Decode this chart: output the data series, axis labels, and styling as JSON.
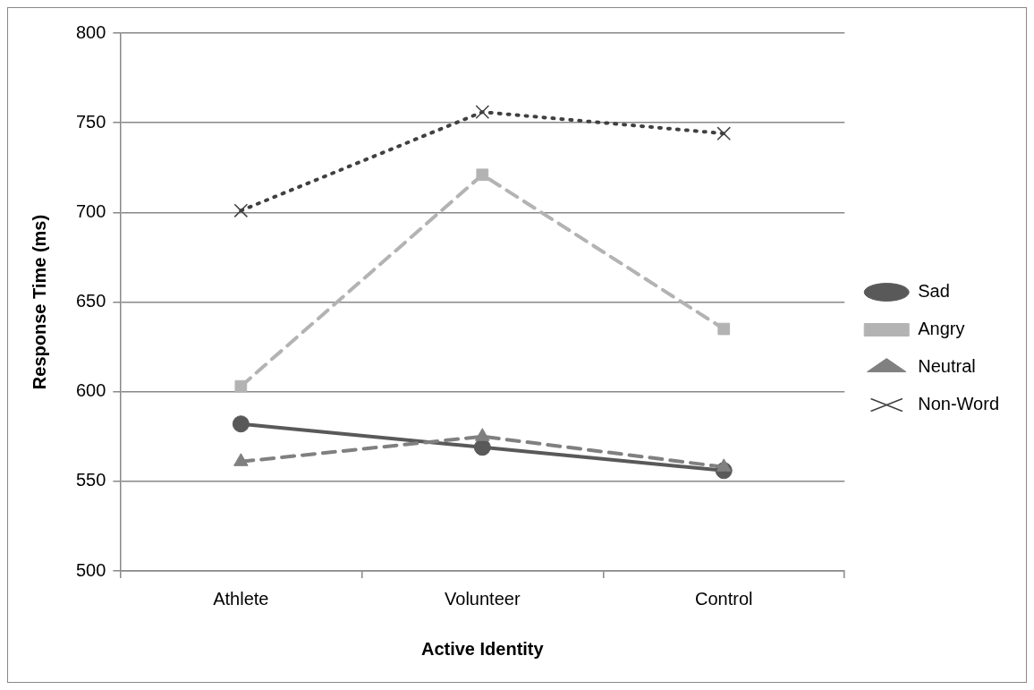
{
  "chart_data": {
    "type": "line",
    "xlabel": "Active Identity",
    "ylabel": "Response Time (ms)",
    "categories": [
      "Athlete",
      "Volunteer",
      "Control"
    ],
    "series": [
      {
        "name": "Sad",
        "color": "#595959",
        "values": [
          582,
          569,
          556
        ],
        "marker": "circle",
        "line_style": "solid"
      },
      {
        "name": "Angry",
        "color": "#b3b3b3",
        "values": [
          603,
          721,
          635
        ],
        "marker": "square",
        "line_style": "dashed"
      },
      {
        "name": "Neutral",
        "color": "#808080",
        "values": [
          561,
          575,
          558
        ],
        "marker": "triangle",
        "line_style": "dashed"
      },
      {
        "name": "Non-Word",
        "color": "#404040",
        "values": [
          701,
          756,
          744
        ],
        "marker": "cross",
        "line_style": "dotted"
      }
    ],
    "ylim": [
      500,
      800
    ],
    "yticks": [
      500,
      550,
      600,
      650,
      700,
      750,
      800
    ],
    "grid": "y",
    "legend": "right"
  }
}
